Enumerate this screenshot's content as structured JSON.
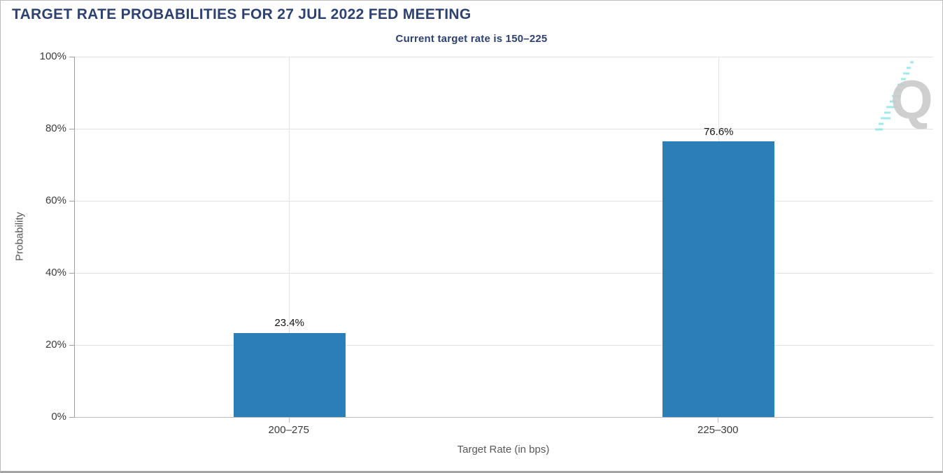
{
  "chart_data": {
    "type": "bar",
    "title": "TARGET RATE PROBABILITIES FOR 27 JUL 2022 FED MEETING",
    "subtitle": "Current target rate is 150–225",
    "categories": [
      "200–275",
      "225–300"
    ],
    "values": [
      23.4,
      76.6
    ],
    "value_labels": [
      "23.4%",
      "76.6%"
    ],
    "xlabel": "Target Rate (in bps)",
    "ylabel": "Probability",
    "ylim": [
      0,
      100
    ],
    "yticks": [
      0,
      20,
      40,
      60,
      80,
      100
    ],
    "ytick_labels": [
      "0%",
      "20%",
      "40%",
      "60%",
      "80%",
      "100%"
    ],
    "grid": "horizontal gridlines at 20% steps plus vertical gridline through each category center",
    "legend": "none",
    "bar_color": "#2b7eb8"
  },
  "watermark": {
    "icon": "q-logo",
    "letter": "Q",
    "letter_color": "#cacaca",
    "accent_color": "#7fe2e2"
  },
  "colors": {
    "heading": "#2e4272",
    "bar": "#2b7eb8",
    "gridline": "#e2e2e2",
    "axis_line": "#9f9f9f",
    "tick_text": "#3c3c3c",
    "axis_title_text": "#585858",
    "background": "#ffffff",
    "frame_border": "#bcbcbc"
  }
}
